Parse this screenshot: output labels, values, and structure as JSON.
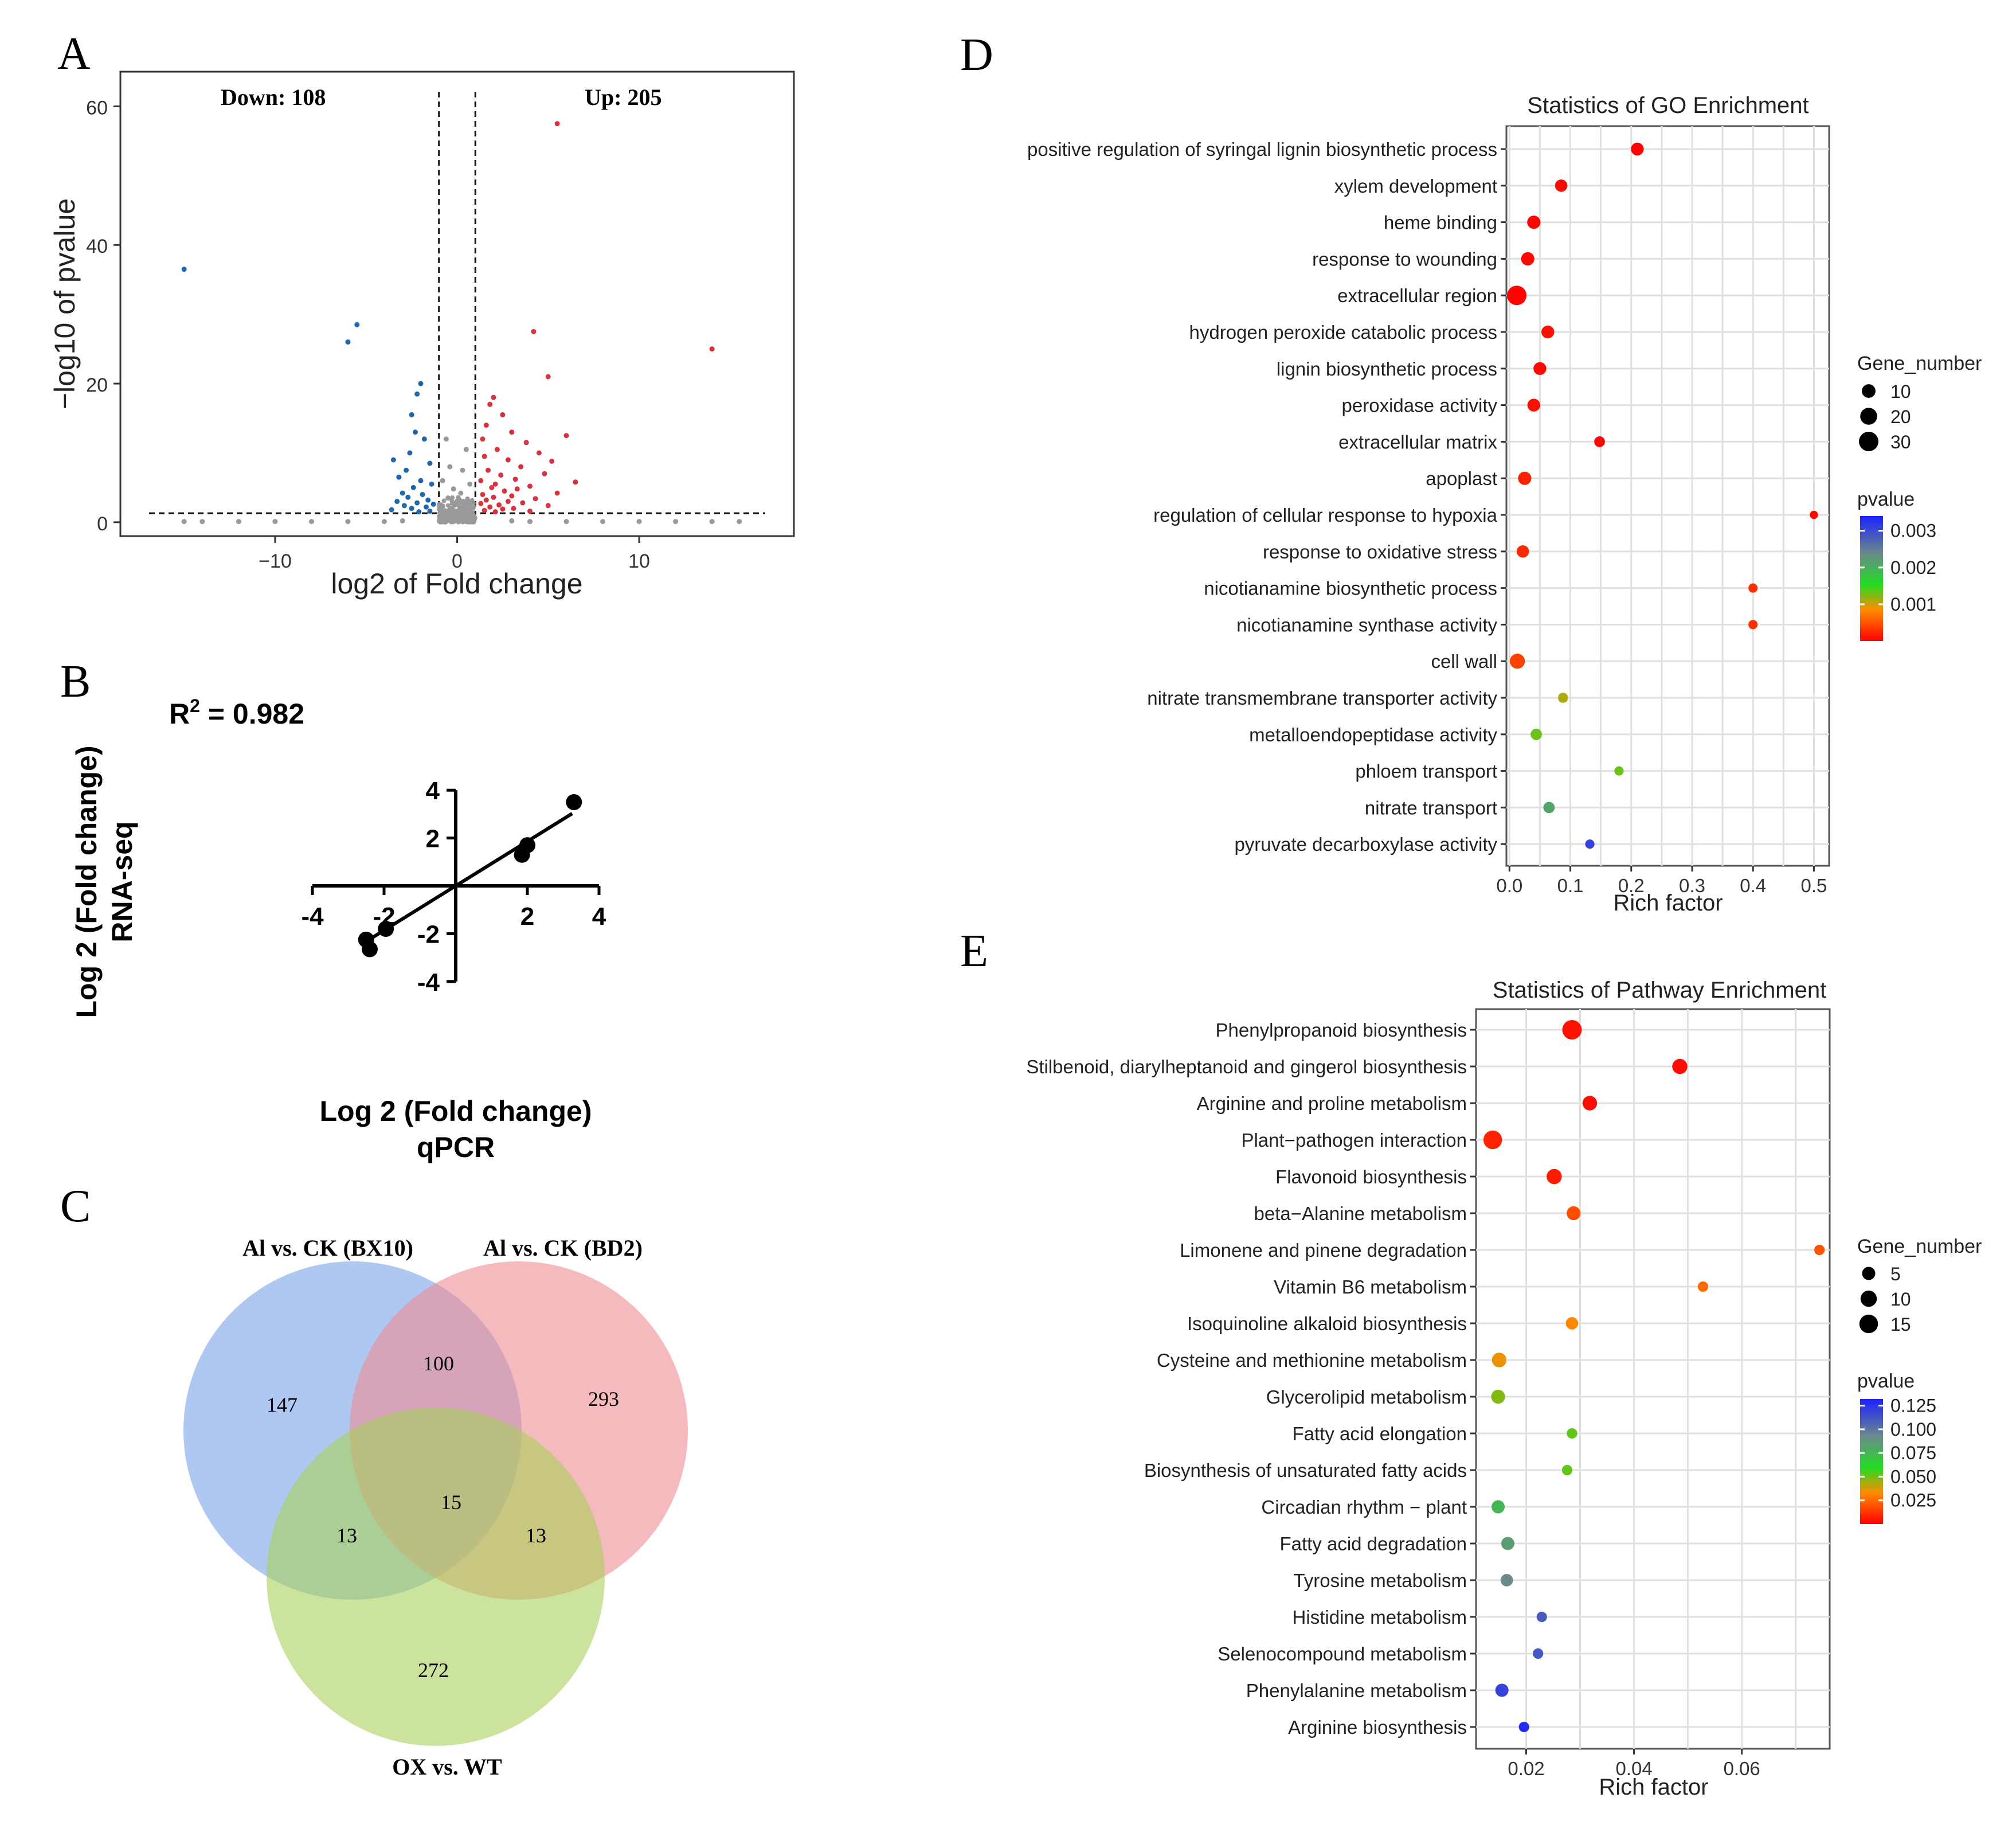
{
  "panels": {
    "A": {
      "letter": "A",
      "chart_data": {
        "type": "scatter",
        "title": "",
        "xlabel": "log2 of Fold change",
        "ylabel": "−log10 of pvalue",
        "xlim": [
          -18.5,
          18.5
        ],
        "ylim": [
          -2,
          65
        ],
        "xticks": [
          -10,
          0,
          10
        ],
        "xtick_labels": [
          "−10",
          "0",
          "10"
        ],
        "yticks": [
          0,
          20,
          40,
          60
        ],
        "ytick_labels": [
          "0",
          "20",
          "40",
          "60"
        ],
        "thresholds": {
          "x": [
            -1,
            1
          ],
          "y": 1.3
        },
        "annotations": {
          "down": "Down: 108",
          "up": "Up: 205"
        },
        "colors": {
          "down": "#2166ac",
          "up": "#d6333f",
          "ns": "#999999"
        },
        "series": [
          {
            "name": "down",
            "points": [
              [
                -15.0,
                36.5
              ],
              [
                -5.5,
                28.5
              ],
              [
                -6.0,
                26.0
              ],
              [
                -2.0,
                20.0
              ],
              [
                -2.2,
                18.5
              ],
              [
                -2.5,
                15.5
              ],
              [
                -2.3,
                13.0
              ],
              [
                -1.8,
                12.0
              ],
              [
                -2.6,
                10.0
              ],
              [
                -3.5,
                9.0
              ],
              [
                -1.5,
                8.5
              ],
              [
                -2.8,
                7.5
              ],
              [
                -3.2,
                6.5
              ],
              [
                -2.0,
                6.0
              ],
              [
                -1.4,
                5.5
              ],
              [
                -2.4,
                5.0
              ],
              [
                -3.0,
                4.2
              ],
              [
                -1.9,
                4.0
              ],
              [
                -2.7,
                3.6
              ],
              [
                -1.6,
                3.2
              ],
              [
                -3.3,
                3.0
              ],
              [
                -2.2,
                2.8
              ],
              [
                -1.3,
                2.6
              ],
              [
                -2.9,
                2.4
              ],
              [
                -1.7,
                2.2
              ],
              [
                -2.5,
                2.0
              ],
              [
                -3.6,
                1.8
              ],
              [
                -1.5,
                1.6
              ],
              [
                -2.1,
                1.5
              ]
            ]
          },
          {
            "name": "up",
            "points": [
              [
                5.5,
                57.5
              ],
              [
                14.0,
                25.0
              ],
              [
                4.2,
                27.5
              ],
              [
                5.0,
                21.0
              ],
              [
                2.0,
                18.0
              ],
              [
                1.8,
                17.0
              ],
              [
                2.5,
                15.5
              ],
              [
                1.6,
                14.0
              ],
              [
                3.0,
                13.0
              ],
              [
                6.0,
                12.5
              ],
              [
                1.4,
                12.0
              ],
              [
                3.8,
                11.5
              ],
              [
                2.2,
                10.5
              ],
              [
                4.5,
                10.0
              ],
              [
                1.5,
                9.5
              ],
              [
                2.8,
                9.0
              ],
              [
                5.2,
                8.8
              ],
              [
                3.5,
                8.0
              ],
              [
                1.7,
                7.5
              ],
              [
                4.8,
                7.0
              ],
              [
                2.4,
                6.8
              ],
              [
                3.2,
                6.2
              ],
              [
                1.3,
                6.0
              ],
              [
                6.5,
                5.8
              ],
              [
                2.1,
                5.5
              ],
              [
                4.0,
                5.2
              ],
              [
                1.9,
                5.0
              ],
              [
                3.3,
                4.8
              ],
              [
                2.6,
                4.5
              ],
              [
                5.5,
                4.2
              ],
              [
                1.4,
                4.0
              ],
              [
                3.0,
                3.8
              ],
              [
                2.0,
                3.6
              ],
              [
                4.3,
                3.4
              ],
              [
                1.6,
                3.2
              ],
              [
                2.8,
                3.0
              ],
              [
                3.6,
                2.8
              ],
              [
                1.3,
                2.7
              ],
              [
                2.3,
                2.5
              ],
              [
                5.0,
                2.4
              ],
              [
                1.8,
                2.2
              ],
              [
                3.1,
                2.0
              ],
              [
                2.5,
                1.9
              ],
              [
                1.5,
                1.7
              ],
              [
                4.0,
                1.6
              ],
              [
                2.1,
                1.5
              ]
            ]
          },
          {
            "name": "ns",
            "points": [
              [
                -0.6,
                12.0
              ],
              [
                0.5,
                10.5
              ],
              [
                -0.4,
                8.0
              ],
              [
                0.3,
                7.5
              ],
              [
                -0.8,
                6.0
              ],
              [
                0.7,
                5.5
              ],
              [
                -0.2,
                4.8
              ],
              [
                0.2,
                4.2
              ],
              [
                -0.5,
                3.5
              ],
              [
                0.6,
                3.0
              ],
              [
                -0.9,
                2.5
              ],
              [
                0.9,
                2.2
              ],
              [
                -0.3,
                2.0
              ],
              [
                0.4,
                1.8
              ],
              [
                -0.7,
                1.4
              ],
              [
                0.8,
                1.2
              ],
              [
                -0.1,
                1.0
              ],
              [
                0.1,
                0.8
              ],
              [
                -0.6,
                0.6
              ],
              [
                0.5,
                0.4
              ],
              [
                -0.95,
                0.9
              ],
              [
                0.95,
                0.7
              ],
              [
                -0.45,
                0.3
              ],
              [
                0.35,
                0.2
              ],
              [
                -14.0,
                0.1
              ],
              [
                -12.0,
                0.1
              ],
              [
                -10.0,
                0.1
              ],
              [
                -8.0,
                0.1
              ],
              [
                -6.0,
                0.1
              ],
              [
                -4.0,
                0.1
              ],
              [
                -3.0,
                0.2
              ],
              [
                3.0,
                0.2
              ],
              [
                4.0,
                0.1
              ],
              [
                6.0,
                0.1
              ],
              [
                8.0,
                0.1
              ],
              [
                10.0,
                0.1
              ],
              [
                12.0,
                0.1
              ],
              [
                14.0,
                0.1
              ],
              [
                15.5,
                0.1
              ],
              [
                -15.0,
                0.1
              ]
            ]
          }
        ]
      }
    },
    "B": {
      "letter": "B",
      "chart_data": {
        "type": "scatter",
        "title": "",
        "annotation": "R² = 0.982",
        "annotation_parts": {
          "base": "R",
          "sup": "2",
          "rest": " = 0.982"
        },
        "xlabel_line1": "Log 2 (Fold change)",
        "xlabel_line2": "qPCR",
        "ylabel_line1": "Log 2 (Fold change)",
        "ylabel_line2": "RNA-seq",
        "xlim": [
          -4,
          4
        ],
        "ylim": [
          -4,
          4
        ],
        "xticks": [
          -4,
          -2,
          2,
          4
        ],
        "yticks": [
          -4,
          -2,
          2,
          4
        ],
        "points": [
          [
            3.3,
            3.5
          ],
          [
            2.0,
            1.7
          ],
          [
            1.85,
            1.3
          ],
          [
            -1.95,
            -1.8
          ],
          [
            -2.5,
            -2.25
          ],
          [
            -2.4,
            -2.65
          ]
        ],
        "fit_line": {
          "slope": 0.93,
          "intercept": 0.0,
          "x_range": [
            -2.45,
            3.25
          ]
        }
      }
    },
    "C": {
      "letter": "C",
      "chart_data": {
        "type": "venn",
        "sets": [
          "Al vs. CK (BX10)",
          "Al vs. CK (BD2)",
          "OX vs. WT"
        ],
        "colors": [
          "#7aa3e8",
          "#ef8c92",
          "#a8d05a"
        ],
        "regions": {
          "only_BX10": 147,
          "only_BD2": 293,
          "only_OX": 272,
          "BX10_BD2": 100,
          "BX10_OX": 13,
          "BD2_OX": 13,
          "all": 15
        }
      }
    },
    "D": {
      "letter": "D",
      "chart_data": {
        "type": "scatter",
        "title": "Statistics of GO Enrichment",
        "xlabel": "Rich factor",
        "ylabel": "",
        "xlim": [
          -0.005,
          0.525
        ],
        "xticks": [
          0.0,
          0.1,
          0.2,
          0.3,
          0.4,
          0.5
        ],
        "xtick_labels": [
          "0.0",
          "0.1",
          "0.2",
          "0.3",
          "0.4",
          "0.5"
        ],
        "categories": [
          "positive regulation of syringal lignin biosynthetic process",
          "xylem development",
          "heme binding",
          "response to wounding",
          "extracellular region",
          "hydrogen peroxide catabolic process",
          "lignin biosynthetic process",
          "peroxidase activity",
          "extracellular matrix",
          "apoplast",
          "regulation of cellular response to hypoxia",
          "response to oxidative stress",
          "nicotianamine biosynthetic process",
          "nicotianamine synthase activity",
          "cell wall",
          "nitrate transmembrane transporter activity",
          "metalloendopeptidase activity",
          "phloem transport",
          "nitrate transport",
          "pyruvate decarboxylase activity"
        ],
        "rich_factor": [
          0.21,
          0.085,
          0.04,
          0.03,
          0.012,
          0.063,
          0.05,
          0.04,
          0.148,
          0.025,
          0.5,
          0.022,
          0.4,
          0.4,
          0.013,
          0.088,
          0.044,
          0.18,
          0.065,
          0.132
        ],
        "gene_number": [
          8,
          7,
          9,
          9,
          30,
          8,
          8,
          8,
          4,
          9,
          1,
          7,
          2,
          2,
          14,
          3,
          5,
          2,
          5,
          2
        ],
        "pvalue": [
          1e-05,
          5e-05,
          3e-05,
          6e-05,
          2e-05,
          8e-05,
          5e-05,
          0.0001,
          5e-05,
          0.0002,
          5e-05,
          0.00025,
          0.0003,
          0.0003,
          0.0004,
          0.0011,
          0.0013,
          0.0013,
          0.0021,
          0.0031
        ],
        "size_legend": {
          "title": "Gene_number",
          "values": [
            10,
            20,
            30
          ],
          "labels": [
            "10",
            "20",
            "30"
          ]
        },
        "color_legend": {
          "title": "pvalue",
          "range": [
            0.0,
            0.0034
          ],
          "ticks": [
            0.003,
            0.002,
            0.001
          ],
          "tick_labels": [
            "0.003",
            "0.002",
            "0.001"
          ]
        }
      }
    },
    "E": {
      "letter": "E",
      "chart_data": {
        "type": "scatter",
        "title": "Statistics of Pathway Enrichment",
        "xlabel": "Rich factor",
        "ylabel": "",
        "xlim": [
          0.0107,
          0.0763
        ],
        "xticks": [
          0.02,
          0.04,
          0.06
        ],
        "xtick_labels": [
          "0.02",
          "0.04",
          "0.06"
        ],
        "categories": [
          "Phenylpropanoid biosynthesis",
          "Stilbenoid, diarylheptanoid and gingerol biosynthesis",
          "Arginine and proline metabolism",
          "Plant−pathogen interaction",
          "Flavonoid biosynthesis",
          "beta−Alanine metabolism",
          "Limonene and pinene degradation",
          "Vitamin B6 metabolism",
          "Isoquinoline alkaloid biosynthesis",
          "Cysteine and methionine metabolism",
          "Glycerolipid metabolism",
          "Fatty acid elongation",
          "Biosynthesis of unsaturated fatty acids",
          "Circadian rhythm − plant",
          "Fatty acid degradation",
          "Tyrosine metabolism",
          "Histidine metabolism",
          "Selenocompound metabolism",
          "Phenylalanine metabolism",
          "Arginine biosynthesis"
        ],
        "rich_factor": [
          0.0285,
          0.0485,
          0.0318,
          0.0138,
          0.0252,
          0.0288,
          0.0744,
          0.0528,
          0.0285,
          0.015,
          0.0148,
          0.0285,
          0.0276,
          0.0148,
          0.0166,
          0.0164,
          0.0229,
          0.0222,
          0.0155,
          0.0196
        ],
        "gene_number": [
          17,
          8,
          7,
          15,
          8,
          6,
          2,
          2,
          4,
          7,
          6,
          2,
          2,
          5,
          5,
          4,
          2,
          2,
          5,
          2
        ],
        "pvalue": [
          0.004,
          0.003,
          0.003,
          0.008,
          0.006,
          0.018,
          0.02,
          0.025,
          0.032,
          0.035,
          0.048,
          0.052,
          0.052,
          0.075,
          0.085,
          0.092,
          0.11,
          0.112,
          0.12,
          0.128
        ],
        "size_legend": {
          "title": "Gene_number",
          "values": [
            5,
            10,
            15
          ],
          "labels": [
            "5",
            "10",
            "15"
          ]
        },
        "color_legend": {
          "title": "pvalue",
          "range": [
            0.0,
            0.132
          ],
          "ticks": [
            0.125,
            0.1,
            0.075,
            0.05,
            0.025
          ],
          "tick_labels": [
            "0.125",
            "0.100",
            "0.075",
            "0.050",
            "0.025"
          ]
        }
      }
    }
  }
}
